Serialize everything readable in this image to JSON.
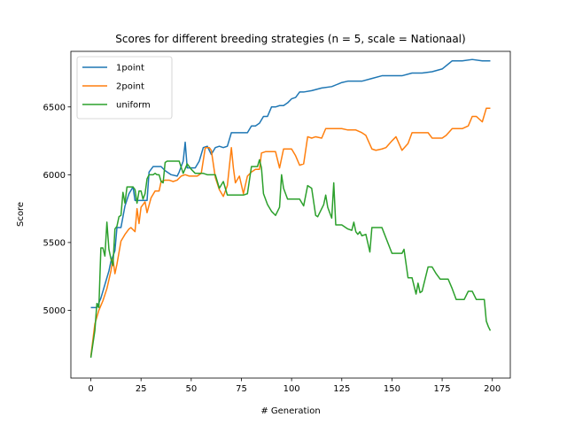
{
  "chart_data": {
    "type": "line",
    "title": "Scores for different breeding strategies (n = 5, scale = Nationaal)",
    "xlabel": "# Generation",
    "ylabel": "Score",
    "xlim": [
      -9.95,
      208.95
    ],
    "ylim": [
      4500,
      6910
    ],
    "xticks": [
      0,
      25,
      50,
      75,
      100,
      125,
      150,
      175,
      200
    ],
    "yticks": [
      5000,
      5500,
      6000,
      6500
    ],
    "legend_position": "top-left",
    "grid": false,
    "series": [
      {
        "name": "1point",
        "color": "#1f77b4",
        "x": [
          0,
          3,
          5,
          7,
          9,
          10,
          12,
          13,
          15,
          17,
          19,
          21,
          22,
          25,
          28,
          29,
          31,
          33,
          35,
          37,
          40,
          43,
          44,
          46,
          47,
          48,
          50,
          52,
          54,
          56,
          58,
          60,
          62,
          64,
          66,
          68,
          70,
          72,
          74,
          76,
          78,
          80,
          82,
          84,
          86,
          88,
          90,
          92,
          94,
          96,
          98,
          100,
          102,
          104,
          106,
          110,
          115,
          120,
          125,
          128,
          132,
          135,
          140,
          145,
          150,
          155,
          160,
          165,
          170,
          175,
          180,
          185,
          190,
          195,
          199
        ],
        "values": [
          5020,
          5020,
          5090,
          5190,
          5290,
          5360,
          5440,
          5610,
          5610,
          5770,
          5860,
          5910,
          5810,
          5810,
          5810,
          6020,
          6060,
          6060,
          6060,
          6030,
          6000,
          5990,
          6020,
          6100,
          6240,
          6050,
          6050,
          6050,
          6100,
          6200,
          6210,
          6150,
          6200,
          6210,
          6200,
          6210,
          6310,
          6310,
          6310,
          6310,
          6310,
          6360,
          6360,
          6380,
          6430,
          6430,
          6500,
          6500,
          6510,
          6510,
          6530,
          6560,
          6570,
          6610,
          6610,
          6620,
          6640,
          6650,
          6680,
          6690,
          6690,
          6690,
          6710,
          6730,
          6730,
          6730,
          6750,
          6750,
          6760,
          6780,
          6840,
          6840,
          6850,
          6840,
          6840
        ]
      },
      {
        "name": "2point",
        "color": "#ff7f0e",
        "x": [
          0,
          2,
          4,
          6,
          8,
          10,
          11,
          12,
          13,
          15,
          17,
          19,
          20,
          22,
          23,
          24,
          25,
          27,
          28,
          30,
          32,
          34,
          35,
          37,
          39,
          41,
          43,
          45,
          47,
          49,
          51,
          53,
          55,
          57,
          59,
          60,
          62,
          64,
          66,
          68,
          70,
          71,
          72,
          74,
          76,
          78,
          80,
          82,
          84,
          85,
          87,
          88,
          90,
          92,
          94,
          96,
          98,
          100,
          102,
          104,
          106,
          108,
          110,
          112,
          115,
          117,
          120,
          122,
          125,
          128,
          130,
          132,
          135,
          137,
          140,
          142,
          145,
          147,
          150,
          152,
          155,
          158,
          160,
          162,
          165,
          168,
          170,
          172,
          175,
          177,
          180,
          183,
          185,
          188,
          190,
          192,
          195,
          197,
          199
        ],
        "values": [
          4660,
          4900,
          5000,
          5070,
          5160,
          5290,
          5380,
          5270,
          5340,
          5510,
          5560,
          5600,
          5610,
          5580,
          5750,
          5640,
          5760,
          5800,
          5720,
          5830,
          5880,
          5880,
          5950,
          5960,
          5960,
          5950,
          5960,
          5990,
          6000,
          5990,
          5990,
          5990,
          6010,
          6200,
          6200,
          6180,
          5980,
          5890,
          5840,
          5920,
          6200,
          6050,
          5940,
          5990,
          5860,
          5990,
          6020,
          6040,
          6040,
          6160,
          6170,
          6170,
          6170,
          6170,
          6050,
          6190,
          6190,
          6190,
          6140,
          6070,
          6080,
          6280,
          6270,
          6280,
          6270,
          6340,
          6340,
          6340,
          6340,
          6330,
          6330,
          6330,
          6310,
          6290,
          6190,
          6180,
          6190,
          6200,
          6250,
          6280,
          6180,
          6230,
          6310,
          6310,
          6310,
          6310,
          6270,
          6270,
          6270,
          6290,
          6340,
          6340,
          6340,
          6360,
          6430,
          6430,
          6390,
          6490,
          6490
        ]
      },
      {
        "name": "uniform",
        "color": "#2ca02c",
        "x": [
          0,
          1,
          2,
          3,
          4,
          5,
          6,
          7,
          8,
          9,
          10,
          11,
          12,
          13,
          14,
          15,
          16,
          17,
          18,
          19,
          20,
          21,
          22,
          23,
          24,
          25,
          26,
          27,
          28,
          29,
          30,
          31,
          32,
          33,
          34,
          35,
          36,
          37,
          38,
          40,
          42,
          44,
          46,
          48,
          50,
          52,
          54,
          56,
          58,
          60,
          62,
          64,
          66,
          68,
          70,
          72,
          74,
          76,
          78,
          80,
          82,
          83,
          84,
          85,
          86,
          88,
          90,
          92,
          94,
          95,
          96,
          98,
          100,
          102,
          103,
          104,
          106,
          108,
          110,
          112,
          113,
          114,
          116,
          117,
          118,
          119,
          120,
          121,
          122,
          125,
          128,
          130,
          131,
          132,
          133,
          134,
          135,
          137,
          139,
          140,
          141,
          143,
          145,
          150,
          155,
          156,
          158,
          160,
          162,
          163,
          164,
          165,
          166,
          168,
          170,
          172,
          174,
          176,
          178,
          180,
          182,
          184,
          186,
          188,
          190,
          192,
          194,
          196,
          197,
          198,
          199
        ],
        "values": [
          4650,
          4750,
          4850,
          5050,
          5020,
          5460,
          5460,
          5400,
          5650,
          5450,
          5380,
          5330,
          5600,
          5620,
          5690,
          5700,
          5870,
          5790,
          5910,
          5910,
          5910,
          5910,
          5890,
          5790,
          5880,
          5880,
          5820,
          5860,
          5970,
          6000,
          6000,
          6000,
          6010,
          6000,
          6000,
          5950,
          5940,
          6090,
          6100,
          6100,
          6100,
          6100,
          6010,
          6080,
          6040,
          6010,
          6010,
          6010,
          6000,
          6000,
          6000,
          5900,
          5950,
          5850,
          5850,
          5850,
          5850,
          5850,
          5860,
          6060,
          6060,
          6060,
          6110,
          6050,
          5860,
          5780,
          5730,
          5700,
          5760,
          6000,
          5900,
          5820,
          5820,
          5820,
          5820,
          5820,
          5770,
          5920,
          5900,
          5700,
          5690,
          5720,
          5780,
          5850,
          5760,
          5720,
          5680,
          5940,
          5630,
          5630,
          5600,
          5590,
          5650,
          5580,
          5560,
          5580,
          5550,
          5560,
          5430,
          5610,
          5610,
          5610,
          5610,
          5420,
          5420,
          5450,
          5240,
          5240,
          5120,
          5200,
          5130,
          5140,
          5200,
          5320,
          5320,
          5270,
          5230,
          5230,
          5230,
          5160,
          5080,
          5080,
          5080,
          5140,
          5140,
          5080,
          5080,
          5080,
          4920,
          4880,
          4850
        ]
      }
    ]
  }
}
